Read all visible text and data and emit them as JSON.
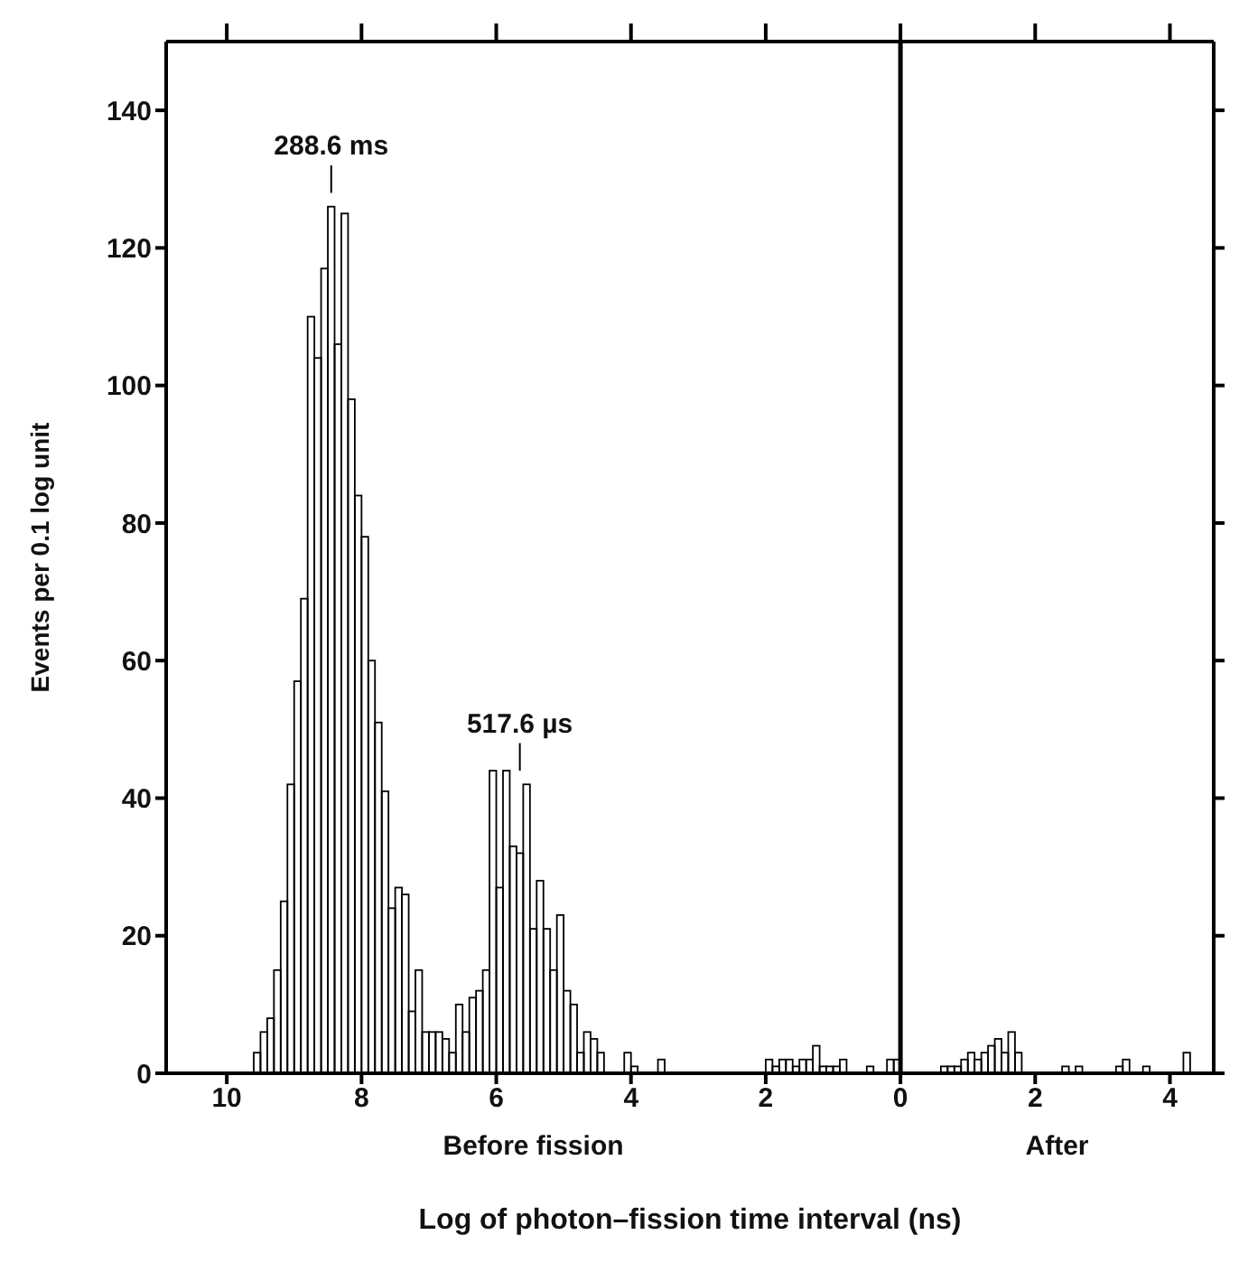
{
  "chart_data": {
    "type": "histogram",
    "xlabel": "Log of photon–fission time interval (ns)",
    "ylabel": "Events per 0.1 log unit",
    "bins": [
      -9.6,
      -9.5,
      -9.4,
      -9.3,
      -9.2,
      -9.1,
      -9,
      -8.9,
      -8.8,
      -8.7,
      -8.6,
      -8.5,
      -8.4,
      -8.3,
      -8.2,
      -8.1,
      -8,
      -7.9,
      -7.8,
      -7.7,
      -7.6,
      -7.5,
      -7.4,
      -7.3,
      -7.2,
      -7.1,
      -7,
      -6.9,
      -6.8,
      -6.7,
      -6.6,
      -6.5,
      -6.4,
      -6.3,
      -6.2,
      -6.1,
      -6,
      -5.9,
      -5.8,
      -5.7,
      -5.6,
      -5.5,
      -5.4,
      -5.3,
      -5.2,
      -5.1,
      -5,
      -4.9,
      -4.8,
      -4.7,
      -4.6,
      -4.5,
      -4.4,
      -4.3,
      -4.2,
      -4.1,
      -4,
      -3.9,
      -3.8,
      -3.7,
      -3.6,
      -3.5,
      -3.4,
      -3.3,
      -3.2,
      -3.1,
      -3,
      -2.9,
      -2.8,
      -2.7,
      -2.6,
      -2.5,
      -2.4,
      -2.3,
      -2.2,
      -2.1,
      -2,
      -1.9,
      -1.8,
      -1.7,
      -1.6,
      -1.5,
      -1.4,
      -1.3,
      -1.2,
      -1.1,
      -1,
      -0.9,
      -0.8,
      -0.7,
      -0.6,
      -0.5,
      -0.4,
      -0.3,
      -0.2,
      -0.1,
      0,
      0.1,
      0.2,
      0.3,
      0.4,
      0.5,
      0.6,
      0.7,
      0.8,
      0.9,
      1,
      1.1,
      1.2,
      1.3,
      1.4,
      1.5,
      1.6,
      1.7,
      1.8,
      1.9,
      2,
      2.1,
      2.2,
      2.3,
      2.4,
      2.5,
      2.6,
      2.7,
      2.8,
      2.9,
      3,
      3.1,
      3.2,
      3.3,
      3.4,
      3.5,
      3.6,
      3.7,
      3.8,
      3.9,
      4,
      4.1,
      4.2,
      4.3
    ],
    "values": [
      3,
      6,
      8,
      15,
      25,
      42,
      57,
      69,
      110,
      104,
      117,
      126,
      106,
      125,
      98,
      84,
      78,
      60,
      51,
      41,
      24,
      27,
      26,
      9,
      15,
      6,
      6,
      6,
      5,
      3,
      10,
      6,
      11,
      12,
      15,
      44,
      27,
      44,
      33,
      32,
      42,
      21,
      28,
      21,
      15,
      23,
      12,
      10,
      3,
      6,
      5,
      3,
      0,
      0,
      0,
      3,
      1,
      0,
      0,
      0,
      2,
      0,
      0,
      0,
      0,
      0,
      0,
      0,
      0,
      0,
      0,
      0,
      0,
      0,
      0,
      0,
      2,
      1,
      2,
      2,
      1,
      2,
      2,
      4,
      1,
      1,
      1,
      2,
      0,
      0,
      0,
      1,
      0,
      0,
      2,
      2,
      0,
      0,
      0,
      0,
      0,
      0,
      1,
      1,
      1,
      2,
      3,
      2,
      3,
      4,
      5,
      3,
      6,
      3,
      0,
      0,
      0,
      0,
      0,
      0,
      1,
      0,
      1,
      0,
      0,
      0,
      0,
      0,
      1,
      2,
      0,
      0,
      1,
      0,
      0,
      0,
      0,
      0,
      3
    ],
    "color": "#000000",
    "xlim": [
      -10.9,
      4.65
    ],
    "xticks": [
      {
        "value": -10,
        "label": "10"
      },
      {
        "value": -8,
        "label": "8"
      },
      {
        "value": -6,
        "label": "6"
      },
      {
        "value": -4,
        "label": "4"
      },
      {
        "value": -2,
        "label": "2"
      },
      0,
      2,
      4
    ],
    "ylim": [
      0,
      150
    ],
    "yticks": [
      0,
      20,
      40,
      60,
      80,
      100,
      120,
      140
    ],
    "ref_lines": [
      {
        "axis": "x",
        "value": 0
      }
    ],
    "annotations": [
      {
        "text": "288.6 ms",
        "x": -8.45,
        "y": 126
      },
      "Before fission",
      "After",
      {
        "text": "517.6 µs",
        "x": -5.65,
        "y": 42
      }
    ]
  }
}
